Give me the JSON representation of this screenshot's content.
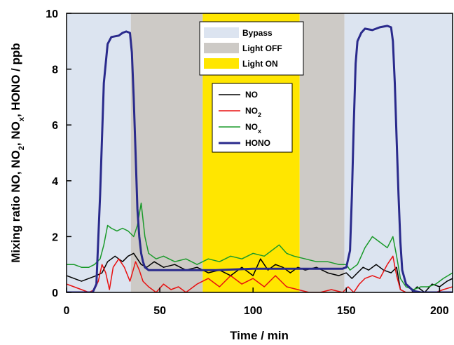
{
  "chart_data": {
    "type": "line",
    "xlabel": "Time / min",
    "ylabel": "Mixing ratio NO, NO",
    "ylabel_parts": {
      "prefix": "Mixing ratio NO, NO",
      "sub2": "2",
      "mid": ", NO",
      "subx": "x",
      "suffix": ", HONO / ppb"
    },
    "xlim": [
      0,
      207
    ],
    "ylim": [
      0,
      10
    ],
    "x_ticks": [
      "0",
      "50",
      "100",
      "150",
      "200"
    ],
    "y_ticks": [
      "0",
      "2",
      "4",
      "6",
      "8",
      "10"
    ],
    "grid": false,
    "regions": [
      {
        "label": "Bypass",
        "color": "#dce4f0",
        "from": 0,
        "to": 34.5
      },
      {
        "label": "Light OFF",
        "color": "#cdcac6",
        "from": 34.5,
        "to": 73
      },
      {
        "label": "Light ON",
        "color": "#ffe600",
        "from": 73,
        "to": 125
      },
      {
        "label": "Light OFF",
        "color": "#cdcac6",
        "from": 125,
        "to": 149
      },
      {
        "label": "Bypass",
        "color": "#dce4f0",
        "from": 149,
        "to": 207
      }
    ],
    "region_legend": [
      {
        "label": "Bypass",
        "color": "#dce4f0"
      },
      {
        "label": "Light OFF",
        "color": "#cdcac6"
      },
      {
        "label": "Light ON",
        "color": "#ffe600"
      }
    ],
    "series": [
      {
        "name": "NO",
        "label_main": "NO",
        "label_sub": "",
        "color": "#000000",
        "width": 1.5,
        "x": [
          0,
          4,
          8,
          12,
          16,
          19,
          22,
          26,
          30,
          33,
          36,
          38,
          40,
          43,
          47,
          52,
          58,
          64,
          70,
          76,
          82,
          88,
          94,
          100,
          104,
          108,
          112,
          116,
          120,
          124,
          128,
          134,
          140,
          146,
          150,
          153,
          156,
          159,
          162,
          166,
          170,
          174,
          177,
          179,
          182,
          185,
          188,
          192,
          196,
          200,
          204,
          207
        ],
        "y": [
          0.6,
          0.5,
          0.4,
          0.5,
          0.6,
          0.7,
          1.1,
          1.3,
          1.1,
          1.3,
          1.4,
          1.2,
          1.0,
          0.9,
          1.1,
          0.9,
          1.0,
          0.8,
          0.9,
          0.7,
          0.8,
          0.6,
          0.9,
          0.6,
          1.2,
          0.8,
          1.0,
          0.9,
          0.7,
          0.9,
          0.8,
          0.9,
          0.7,
          0.6,
          0.7,
          0.5,
          0.7,
          0.9,
          0.8,
          1.0,
          0.8,
          0.7,
          0.9,
          0.1,
          0.0,
          0.0,
          0.2,
          0.0,
          0.3,
          0.2,
          0.4,
          0.5
        ]
      },
      {
        "name": "NO2",
        "label_main": "NO",
        "label_sub": "2",
        "color": "#e81010",
        "width": 1.5,
        "x": [
          0,
          4,
          8,
          12,
          15,
          17,
          19,
          21,
          23,
          25,
          28,
          31,
          34,
          37,
          39,
          41,
          44,
          48,
          52,
          56,
          60,
          64,
          70,
          76,
          82,
          88,
          94,
          100,
          106,
          112,
          118,
          124,
          130,
          136,
          142,
          148,
          151,
          154,
          157,
          160,
          164,
          168,
          172,
          175,
          177,
          179,
          182,
          186,
          190,
          194,
          198,
          202,
          207
        ],
        "y": [
          0.3,
          0.2,
          0.1,
          0.0,
          0.1,
          0.4,
          1.0,
          0.7,
          0.1,
          0.9,
          1.2,
          0.9,
          0.4,
          1.1,
          0.8,
          0.4,
          0.2,
          0.0,
          0.3,
          0.1,
          0.2,
          0.0,
          0.3,
          0.5,
          0.2,
          0.6,
          0.3,
          0.5,
          0.2,
          0.6,
          0.2,
          0.1,
          0.0,
          0.0,
          0.1,
          0.0,
          0.2,
          0.0,
          0.3,
          0.5,
          0.6,
          0.5,
          1.0,
          1.3,
          0.6,
          0.1,
          0.0,
          0.0,
          0.0,
          0.0,
          0.0,
          0.1,
          0.2
        ]
      },
      {
        "name": "NOx",
        "label_main": "NO",
        "label_sub": "x",
        "color": "#1a9a2a",
        "width": 1.5,
        "x": [
          0,
          4,
          8,
          12,
          15,
          18,
          20,
          22,
          24,
          27,
          30,
          33,
          36,
          38,
          40,
          42,
          44,
          48,
          52,
          58,
          64,
          70,
          76,
          82,
          88,
          94,
          100,
          106,
          110,
          114,
          118,
          122,
          128,
          134,
          140,
          146,
          150,
          152,
          154,
          156,
          158,
          160,
          164,
          168,
          172,
          175,
          177,
          179,
          182,
          186,
          190,
          194,
          198,
          202,
          207
        ],
        "y": [
          1.0,
          1.0,
          0.9,
          0.9,
          1.0,
          1.2,
          1.7,
          2.4,
          2.3,
          2.2,
          2.3,
          2.2,
          2.0,
          2.4,
          3.2,
          2.0,
          1.4,
          1.2,
          1.3,
          1.1,
          1.2,
          1.0,
          1.2,
          1.1,
          1.3,
          1.2,
          1.4,
          1.3,
          1.5,
          1.7,
          1.4,
          1.3,
          1.2,
          1.1,
          1.1,
          1.0,
          1.0,
          0.8,
          0.9,
          1.0,
          1.3,
          1.6,
          2.0,
          1.8,
          1.6,
          2.0,
          1.3,
          0.5,
          0.2,
          0.1,
          0.2,
          0.2,
          0.3,
          0.5,
          0.7
        ]
      },
      {
        "name": "HONO",
        "label_main": "HONO",
        "label_sub": "",
        "color": "#2a2a8c",
        "width": 3,
        "x": [
          0,
          14,
          16,
          18,
          20,
          22,
          24,
          28,
          30,
          32,
          34,
          35,
          36,
          37,
          38,
          39,
          40,
          41,
          42,
          44,
          48,
          60,
          80,
          100,
          120,
          140,
          148,
          150,
          152,
          153,
          154,
          155,
          156,
          158,
          160,
          164,
          168,
          172,
          174,
          175,
          176,
          177,
          178,
          179,
          180,
          182,
          186,
          190,
          200,
          207
        ],
        "y": [
          0,
          0,
          0.3,
          3.5,
          7.5,
          8.9,
          9.15,
          9.2,
          9.3,
          9.35,
          9.3,
          8.6,
          7.0,
          5.0,
          3.0,
          2.0,
          1.4,
          1.1,
          0.9,
          0.8,
          0.8,
          0.8,
          0.8,
          0.85,
          0.85,
          0.85,
          0.85,
          0.9,
          1.5,
          3.5,
          6.0,
          8.2,
          9.0,
          9.3,
          9.45,
          9.4,
          9.5,
          9.55,
          9.5,
          9.0,
          7.5,
          5.5,
          3.5,
          1.8,
          0.8,
          0.3,
          0.05,
          0.0,
          0.0,
          0.0
        ]
      }
    ]
  }
}
